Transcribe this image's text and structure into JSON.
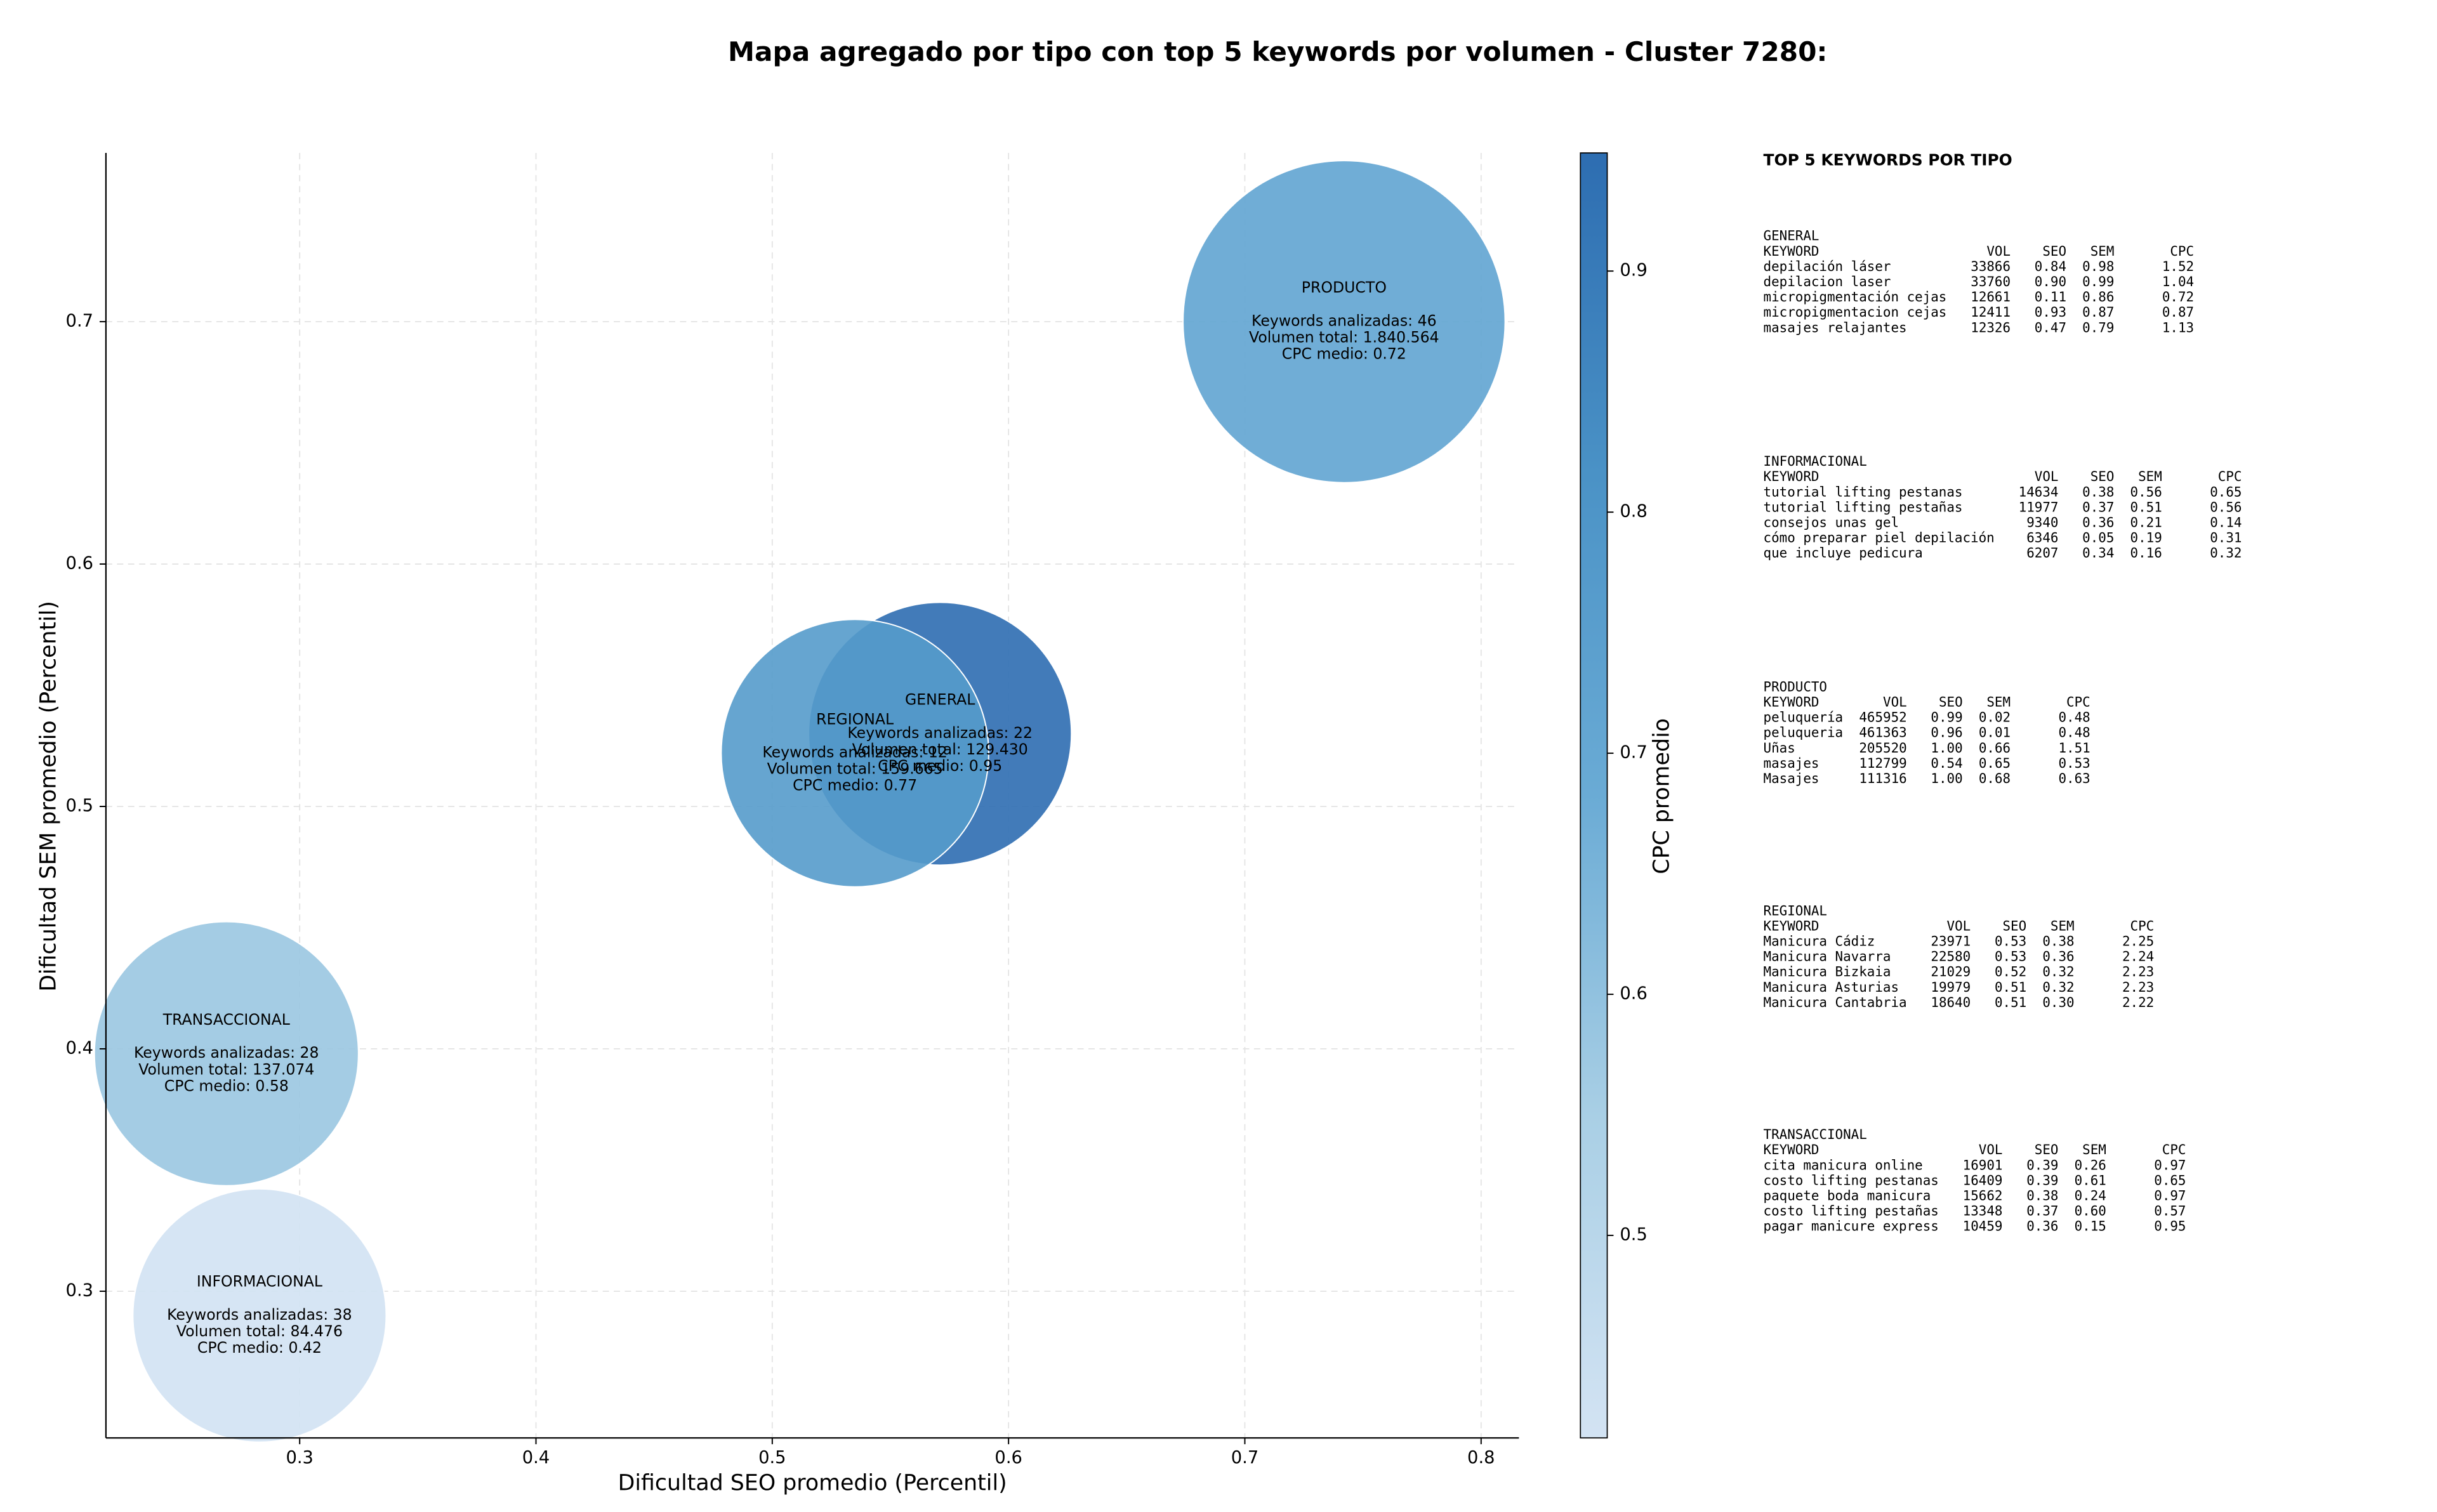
{
  "chart_data": {
    "type": "bubble",
    "title": "Mapa agregado por tipo con top 5 keywords por volumen - Cluster 7280:",
    "xlabel": "Dificultad SEO promedio (Percentil)",
    "ylabel": "Dificultad SEM promedio (Percentil)",
    "xlim": [
      0.218,
      0.816
    ],
    "ylim": [
      0.2395,
      0.7696
    ],
    "xticks": [
      0.3,
      0.4,
      0.5,
      0.6,
      0.7,
      0.8
    ],
    "yticks": [
      0.3,
      0.4,
      0.5,
      0.6,
      0.7
    ],
    "grid": true,
    "categories": [
      "PRODUCTO",
      "GENERAL",
      "REGIONAL",
      "TRANSACCIONAL",
      "INFORMACIONAL"
    ],
    "x": [
      0.742,
      0.571,
      0.535,
      0.269,
      0.283
    ],
    "y": [
      0.7,
      0.53,
      0.522,
      0.398,
      0.29
    ],
    "sizes": [
      1840564,
      129430,
      159665,
      137074,
      84476
    ],
    "cpc": [
      0.72,
      0.95,
      0.77,
      0.58,
      0.42
    ],
    "annotations": [
      [
        "Keywords analizadas: 46",
        "Volumen total: 1.840.564",
        "CPC medio: 0.72"
      ],
      [
        "Keywords analizadas: 22",
        "Volumen total: 129.430",
        "CPC medio: 0.95"
      ],
      [
        "Keywords analizadas: 12",
        "Volumen total: 159.665",
        "CPC medio: 0.77"
      ],
      [
        "Keywords analizadas: 28",
        "Volumen total: 137.074",
        "CPC medio: 0.58"
      ],
      [
        "Keywords analizadas: 38",
        "Volumen total: 84.476",
        "CPC medio: 0.42"
      ]
    ],
    "colorbar": {
      "label": "CPC promedio",
      "lim": [
        0.416,
        0.949
      ],
      "ticks": [
        0.5,
        0.6,
        0.7,
        0.8,
        0.9
      ],
      "colormap": [
        "#d3e3f3",
        "#a9cfe5",
        "#6aabd5",
        "#4a92c6",
        "#2d6db1"
      ]
    }
  },
  "side_panel": {
    "title": "TOP 5 KEYWORDS POR TIPO",
    "groups": [
      {
        "name": "GENERAL",
        "header": [
          "KEYWORD",
          "VOL",
          "SEO",
          "SEM",
          "CPC"
        ],
        "rows": [
          [
            "depilación láser",
            "33866",
            "0.84",
            "0.98",
            "1.52"
          ],
          [
            "depilacion laser",
            "33760",
            "0.90",
            "0.99",
            "1.04"
          ],
          [
            "micropigmentación cejas",
            "12661",
            "0.11",
            "0.86",
            "0.72"
          ],
          [
            "micropigmentacion cejas",
            "12411",
            "0.93",
            "0.87",
            "0.87"
          ],
          [
            "masajes relajantes",
            "12326",
            "0.47",
            "0.79",
            "1.13"
          ]
        ]
      },
      {
        "name": "INFORMACIONAL",
        "header": [
          "KEYWORD",
          "VOL",
          "SEO",
          "SEM",
          "CPC"
        ],
        "rows": [
          [
            "tutorial lifting pestanas",
            "14634",
            "0.38",
            "0.56",
            "0.65"
          ],
          [
            "tutorial lifting pestañas",
            "11977",
            "0.37",
            "0.51",
            "0.56"
          ],
          [
            "consejos unas gel",
            "9340",
            "0.36",
            "0.21",
            "0.14"
          ],
          [
            "cómo preparar piel depilación",
            "6346",
            "0.05",
            "0.19",
            "0.31"
          ],
          [
            "que incluye pedicura",
            "6207",
            "0.34",
            "0.16",
            "0.32"
          ]
        ]
      },
      {
        "name": "PRODUCTO",
        "header": [
          "KEYWORD",
          "VOL",
          "SEO",
          "SEM",
          "CPC"
        ],
        "rows": [
          [
            "peluquería",
            "465952",
            "0.99",
            "0.02",
            "0.48"
          ],
          [
            "peluqueria",
            "461363",
            "0.96",
            "0.01",
            "0.48"
          ],
          [
            "Uñas",
            "205520",
            "1.00",
            "0.66",
            "1.51"
          ],
          [
            "masajes",
            "112799",
            "0.54",
            "0.65",
            "0.53"
          ],
          [
            "Masajes",
            "111316",
            "1.00",
            "0.68",
            "0.63"
          ]
        ]
      },
      {
        "name": "REGIONAL",
        "header": [
          "KEYWORD",
          "VOL",
          "SEO",
          "SEM",
          "CPC"
        ],
        "rows": [
          [
            "Manicura Cádiz",
            "23971",
            "0.53",
            "0.38",
            "2.25"
          ],
          [
            "Manicura Navarra",
            "22580",
            "0.53",
            "0.36",
            "2.24"
          ],
          [
            "Manicura Bizkaia",
            "21029",
            "0.52",
            "0.32",
            "2.23"
          ],
          [
            "Manicura Asturias",
            "19979",
            "0.51",
            "0.32",
            "2.23"
          ],
          [
            "Manicura Cantabria",
            "18640",
            "0.51",
            "0.30",
            "2.22"
          ]
        ]
      },
      {
        "name": "TRANSACCIONAL",
        "header": [
          "KEYWORD",
          "VOL",
          "SEO",
          "SEM",
          "CPC"
        ],
        "rows": [
          [
            "cita manicura online",
            "16901",
            "0.39",
            "0.26",
            "0.97"
          ],
          [
            "costo lifting pestanas",
            "16409",
            "0.39",
            "0.61",
            "0.65"
          ],
          [
            "paquete boda manicura",
            "15662",
            "0.38",
            "0.24",
            "0.97"
          ],
          [
            "costo lifting pestañas",
            "13348",
            "0.37",
            "0.60",
            "0.57"
          ],
          [
            "pagar manicure express",
            "10459",
            "0.36",
            "0.15",
            "0.95"
          ]
        ]
      }
    ]
  }
}
